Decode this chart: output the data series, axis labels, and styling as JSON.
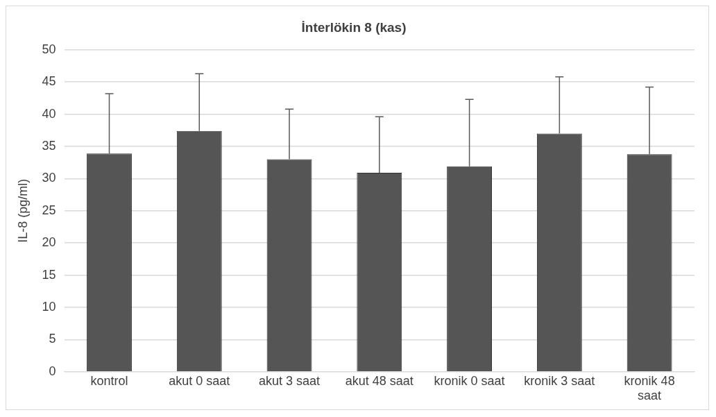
{
  "chart_data": {
    "type": "bar",
    "title": "İnterlökin 8 (kas)",
    "ylabel": "IL-8 (pg/ml)",
    "categories": [
      "kontrol",
      "akut 0 saat",
      "akut 3 saat",
      "akut 48 saat",
      "kronik 0 saat",
      "kronik 3 saat",
      "kronik 48 saat"
    ],
    "values": [
      33.9,
      37.4,
      33.0,
      30.9,
      31.9,
      37.0,
      33.8
    ],
    "errors": [
      [
        33.9,
        43.2
      ],
      [
        37.4,
        46.3
      ],
      [
        33.0,
        40.8
      ],
      [
        30.9,
        39.6
      ],
      [
        31.9,
        42.3
      ],
      [
        37.0,
        45.8
      ],
      [
        33.8,
        44.2
      ]
    ],
    "color": "#555555",
    "ylim": [
      0,
      50
    ],
    "yticks": [
      0,
      5,
      10,
      15,
      20,
      25,
      30,
      35,
      40,
      45,
      50
    ],
    "grid": "y",
    "legend": false
  }
}
